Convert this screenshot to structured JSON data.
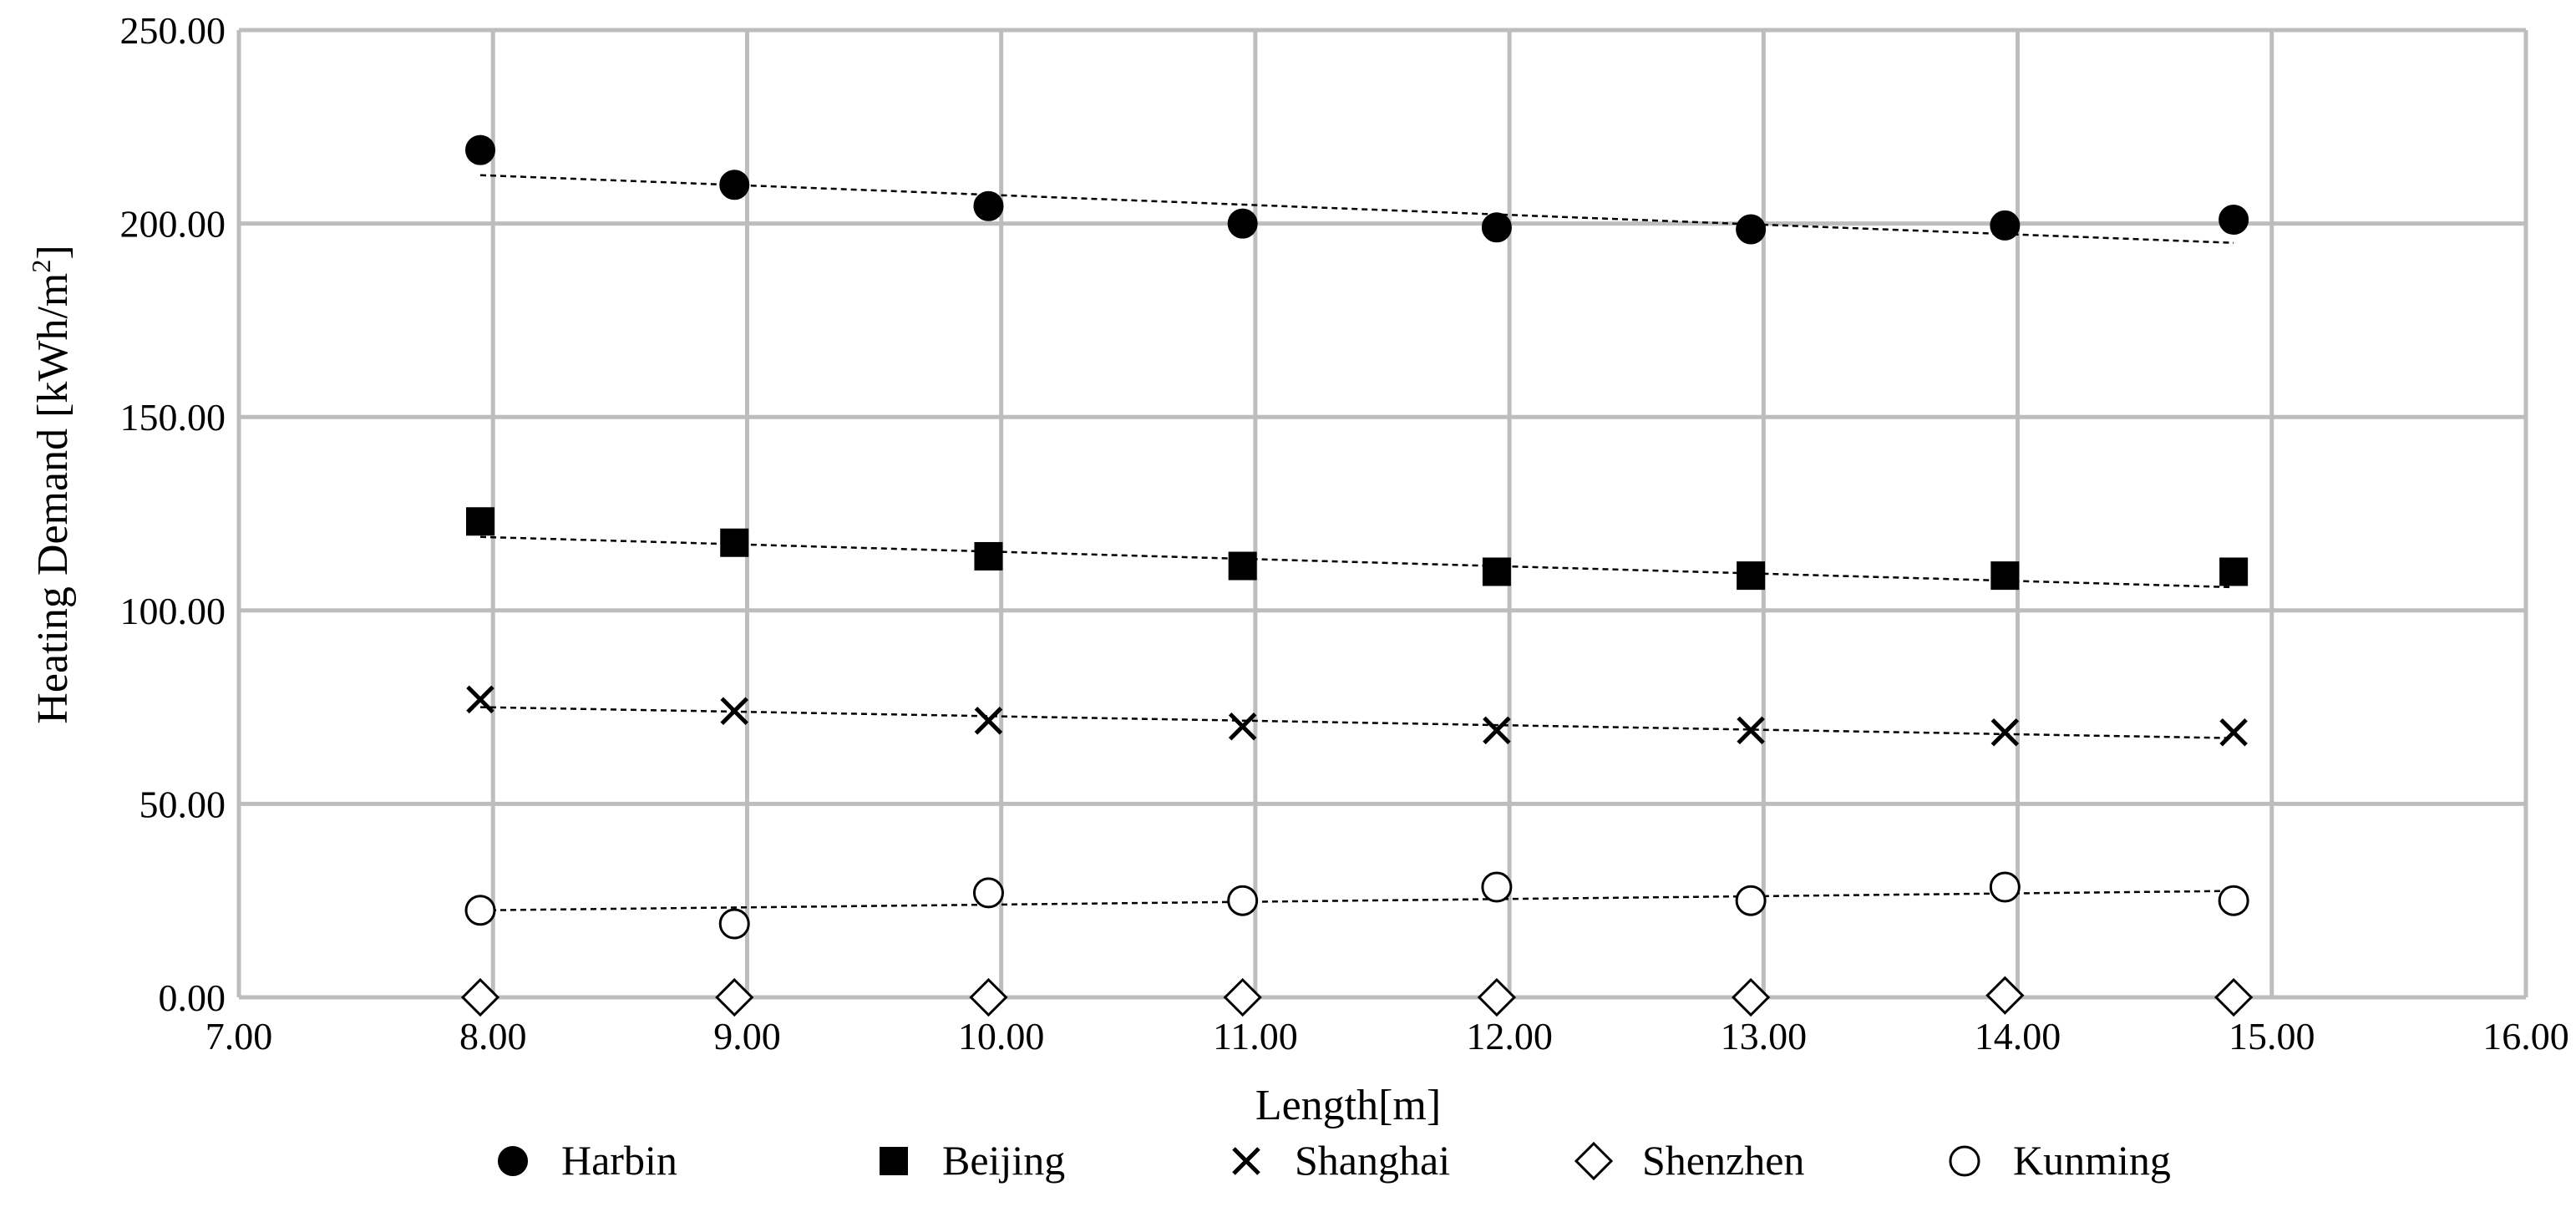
{
  "chart_data": {
    "type": "scatter",
    "title": "",
    "xlabel": "Length[m]",
    "ylabel": "Heating Demand [kWh/m²]",
    "ylabel_main": "Heating Demand [kWh/m",
    "ylabel_sup": "2",
    "ylabel_close": "]",
    "xlim": [
      7,
      16
    ],
    "ylim": [
      0,
      250
    ],
    "xticks": [
      7,
      8,
      9,
      10,
      11,
      12,
      13,
      14,
      15,
      16
    ],
    "xtick_labels": [
      "7.00",
      "8.00",
      "9.00",
      "10.00",
      "11.00",
      "12.00",
      "13.00",
      "14.00",
      "15.00",
      "16.00"
    ],
    "yticks": [
      0,
      50,
      100,
      150,
      200,
      250
    ],
    "ytick_labels": [
      "0.00",
      "50.00",
      "100.00",
      "150.00",
      "200.00",
      "250.00"
    ],
    "grid": true,
    "legend_position": "bottom",
    "trendlines": "dashed linear",
    "x": [
      7.95,
      8.95,
      9.95,
      10.95,
      11.95,
      12.95,
      13.95,
      14.85
    ],
    "series": [
      {
        "name": "Harbin",
        "marker": "filled-circle",
        "values": [
          219,
          210,
          204.5,
          200,
          199,
          198.5,
          199.5,
          201
        ],
        "trend": [
          212.5,
          195
        ]
      },
      {
        "name": "Beijing",
        "marker": "filled-square",
        "values": [
          123,
          117.5,
          114,
          111.5,
          110,
          109,
          109,
          110
        ],
        "trend": [
          119,
          106
        ]
      },
      {
        "name": "Shanghai",
        "marker": "cross",
        "values": [
          77,
          74,
          71.5,
          70,
          69,
          69,
          68.5,
          68.5
        ],
        "trend": [
          75,
          67
        ]
      },
      {
        "name": "Shenzhen",
        "marker": "open-diamond",
        "values": [
          0,
          0,
          0,
          0,
          0,
          0,
          0.5,
          0
        ],
        "trend": null
      },
      {
        "name": "Kunming",
        "marker": "open-circle",
        "values": [
          22.5,
          19,
          27,
          25,
          28.5,
          25,
          28.5,
          25
        ],
        "trend": [
          22.5,
          27.5
        ]
      }
    ]
  }
}
